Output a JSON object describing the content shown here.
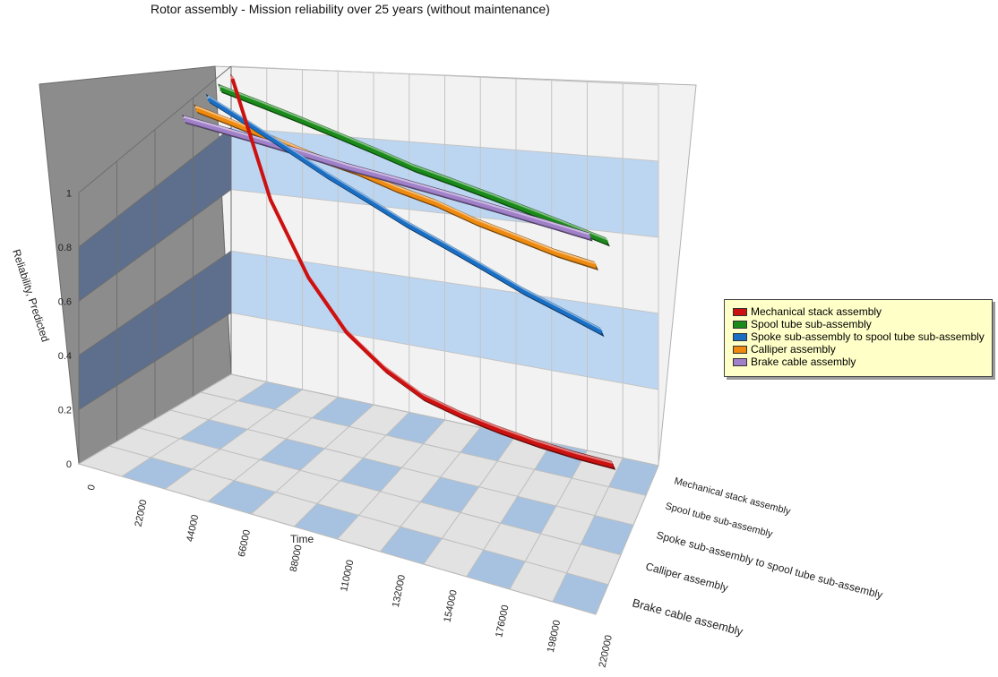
{
  "chart_data": {
    "type": "line",
    "title": "Rotor assembly - Mission reliability over 25 years (without maintenance)",
    "xlabel": "Time",
    "ylabel": "Reliability, Predicted",
    "zlabels": [
      "Mechanical stack assembly",
      "Spool tube sub-assembly",
      "Spoke sub-assembly to spool tube sub-assembly",
      "Calliper assembly",
      "Brake cable assembly"
    ],
    "x": [
      0,
      22000,
      44000,
      66000,
      88000,
      110000,
      132000,
      154000,
      176000,
      198000,
      220000
    ],
    "x_tick_labels": [
      "0",
      "22000",
      "44000",
      "66000",
      "88000",
      "110000",
      "132000",
      "154000",
      "176000",
      "198000",
      "220000"
    ],
    "xlim": [
      0,
      220000
    ],
    "ylim": [
      0,
      1
    ],
    "y_ticks": [
      0,
      0.2,
      0.4,
      0.6,
      0.8,
      1
    ],
    "y_tick_labels": [
      "0",
      "0.2",
      "0.4",
      "0.6",
      "0.8",
      "1"
    ],
    "grid": true,
    "legend_position": "right",
    "series": [
      {
        "name": "Mechanical stack assembly",
        "color": "#cc1111",
        "values": [
          1.0,
          0.62,
          0.39,
          0.24,
          0.15,
          0.09,
          0.06,
          0.04,
          0.025,
          0.015,
          0.01
        ]
      },
      {
        "name": "Spool tube sub-assembly",
        "color": "#1a8a1a",
        "values": [
          1.0,
          0.96,
          0.92,
          0.88,
          0.84,
          0.8,
          0.77,
          0.74,
          0.71,
          0.68,
          0.65
        ]
      },
      {
        "name": "Spoke sub-assembly to spool tube sub-assembly",
        "color": "#1a6fc4",
        "values": [
          1.0,
          0.93,
          0.86,
          0.79,
          0.73,
          0.67,
          0.62,
          0.57,
          0.52,
          0.48,
          0.44
        ]
      },
      {
        "name": "Calliper assembly",
        "color": "#ee8a10",
        "values": [
          1.0,
          0.96,
          0.92,
          0.88,
          0.85,
          0.81,
          0.78,
          0.74,
          0.71,
          0.68,
          0.66
        ]
      },
      {
        "name": "Brake cable assembly",
        "color": "#a080c8",
        "values": [
          1.0,
          0.975,
          0.95,
          0.925,
          0.9,
          0.88,
          0.86,
          0.84,
          0.82,
          0.8,
          0.78
        ]
      }
    ]
  }
}
